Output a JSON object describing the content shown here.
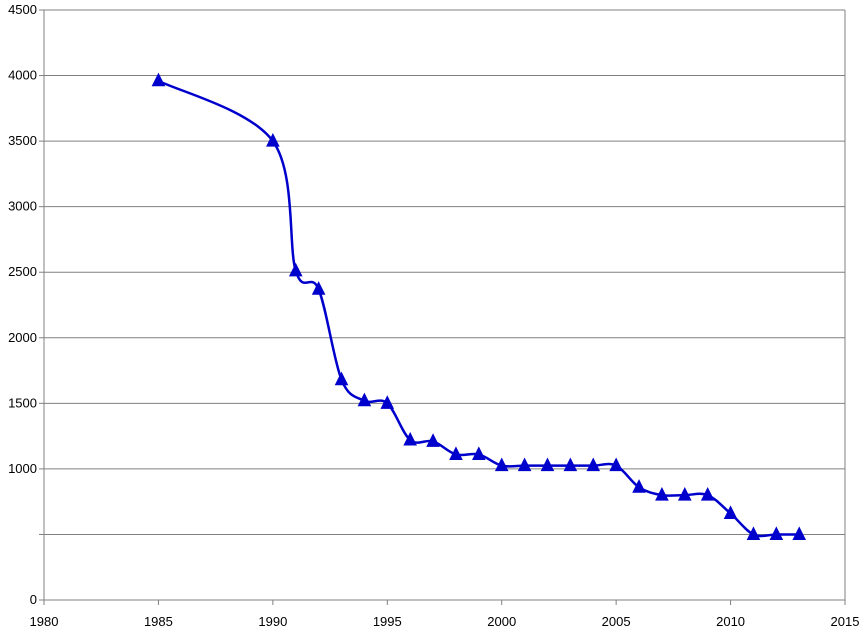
{
  "chart_data": {
    "type": "line",
    "title": "",
    "xlabel": "",
    "ylabel": "",
    "xlim": [
      1980,
      2015
    ],
    "ylim": [
      0,
      4500
    ],
    "x_ticks": [
      "1980",
      "1985",
      "1990",
      "1995",
      "2000",
      "2005",
      "2010",
      "2015"
    ],
    "x_tick_values": [
      1980,
      1985,
      1990,
      1995,
      2000,
      2005,
      2010,
      2015
    ],
    "y_tick_values": [
      0,
      500,
      1000,
      1500,
      2000,
      2500,
      3000,
      3500,
      4000,
      4500
    ],
    "y_tick_labels": [
      "0",
      "",
      "1000",
      "1500",
      "2000",
      "2500",
      "3000",
      "3500",
      "4000",
      "4500"
    ],
    "grid": "horizontal",
    "legend": "none",
    "line_color": "#0000cc",
    "marker": "triangle",
    "series": [
      {
        "x": [
          1985,
          1990,
          1991,
          1992,
          1993,
          1994,
          1995,
          1996,
          1997,
          1998,
          1999,
          2000,
          2001,
          2002,
          2003,
          2004,
          2005,
          2006,
          2007,
          2008,
          2009,
          2010,
          2011,
          2012,
          2013
        ],
        "y": [
          3960,
          3500,
          2510,
          2370,
          1680,
          1520,
          1500,
          1220,
          1210,
          1110,
          1110,
          1025,
          1025,
          1025,
          1025,
          1025,
          1025,
          860,
          800,
          800,
          800,
          660,
          500,
          500,
          500
        ]
      }
    ]
  }
}
